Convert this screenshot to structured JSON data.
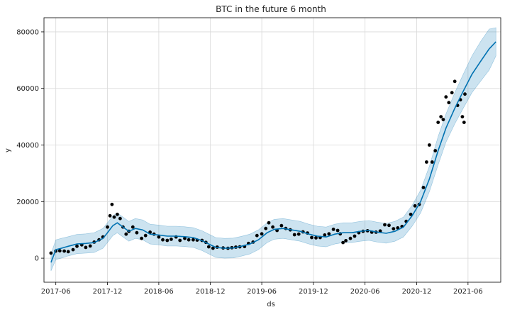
{
  "chart_data": {
    "type": "line",
    "title": "BTC in the future 6 month",
    "xlabel": "ds",
    "ylabel": "y",
    "xlim": [
      "2017-04-20",
      "2021-09-25"
    ],
    "ylim": [
      -8500,
      85000
    ],
    "x_ticks": [
      "2017-06",
      "2017-12",
      "2018-06",
      "2018-12",
      "2019-06",
      "2019-12",
      "2020-06",
      "2020-12",
      "2021-06"
    ],
    "y_ticks": [
      0,
      20000,
      40000,
      60000,
      80000
    ],
    "colors": {
      "forecast": "#0072B2",
      "band": "#0072B2",
      "actual": "#000000",
      "grid": "#d9d9d9"
    },
    "series": [
      {
        "name": "yhat",
        "x": [
          "2017-05-15",
          "2017-06-01",
          "2017-06-20",
          "2017-07-15",
          "2017-08-15",
          "2017-09-15",
          "2017-10-15",
          "2017-11-15",
          "2017-12-01",
          "2017-12-20",
          "2018-01-05",
          "2018-01-25",
          "2018-02-15",
          "2018-03-10",
          "2018-04-05",
          "2018-05-01",
          "2018-06-01",
          "2018-07-01",
          "2018-08-01",
          "2018-09-01",
          "2018-10-01",
          "2018-11-01",
          "2018-11-25",
          "2018-12-20",
          "2019-01-20",
          "2019-02-20",
          "2019-03-20",
          "2019-04-20",
          "2019-05-20",
          "2019-06-20",
          "2019-07-15",
          "2019-08-15",
          "2019-09-15",
          "2019-10-15",
          "2019-11-15",
          "2019-12-15",
          "2020-01-15",
          "2020-02-15",
          "2020-03-15",
          "2020-04-15",
          "2020-05-15",
          "2020-06-15",
          "2020-07-15",
          "2020-08-15",
          "2020-09-15",
          "2020-10-15",
          "2020-11-15",
          "2020-12-15",
          "2021-01-15",
          "2021-02-15",
          "2021-03-15",
          "2021-04-15",
          "2021-05-15",
          "2021-06-15",
          "2021-07-15",
          "2021-08-15",
          "2021-09-08"
        ],
        "values": [
          -1500,
          3000,
          3500,
          4200,
          5000,
          5200,
          5500,
          7000,
          9000,
          11500,
          12500,
          11000,
          9500,
          10500,
          10000,
          8500,
          8200,
          7800,
          7800,
          7600,
          7300,
          6200,
          5000,
          3800,
          3500,
          3600,
          4200,
          5000,
          6500,
          9000,
          10200,
          10500,
          10000,
          9500,
          8500,
          7800,
          7500,
          8500,
          9000,
          9000,
          9500,
          9800,
          9200,
          8800,
          9500,
          11000,
          15000,
          20000,
          28000,
          38000,
          46000,
          53000,
          59000,
          65000,
          69500,
          74000,
          76500
        ]
      }
    ],
    "forecast_band": {
      "x": [
        "2017-05-15",
        "2017-06-01",
        "2017-06-20",
        "2017-07-15",
        "2017-08-15",
        "2017-09-15",
        "2017-10-15",
        "2017-11-15",
        "2017-12-01",
        "2017-12-20",
        "2018-01-05",
        "2018-01-25",
        "2018-02-15",
        "2018-03-10",
        "2018-04-05",
        "2018-05-01",
        "2018-06-01",
        "2018-07-01",
        "2018-08-01",
        "2018-09-01",
        "2018-10-01",
        "2018-11-01",
        "2018-11-25",
        "2018-12-20",
        "2019-01-20",
        "2019-02-20",
        "2019-03-20",
        "2019-04-20",
        "2019-05-20",
        "2019-06-20",
        "2019-07-15",
        "2019-08-15",
        "2019-09-15",
        "2019-10-15",
        "2019-11-15",
        "2019-12-15",
        "2020-01-15",
        "2020-02-15",
        "2020-03-15",
        "2020-04-15",
        "2020-05-15",
        "2020-06-15",
        "2020-07-15",
        "2020-08-15",
        "2020-09-15",
        "2020-10-15",
        "2020-11-15",
        "2020-12-15",
        "2021-01-15",
        "2021-02-15",
        "2021-03-15",
        "2021-04-15",
        "2021-05-15",
        "2021-06-15",
        "2021-07-15",
        "2021-08-15",
        "2021-09-08"
      ],
      "lower": [
        -4500,
        -500,
        0,
        800,
        1600,
        1800,
        2000,
        3500,
        5500,
        8000,
        9000,
        7500,
        6000,
        7000,
        6500,
        5000,
        4700,
        4300,
        4300,
        4100,
        3800,
        2700,
        1500,
        300,
        0,
        100,
        700,
        1500,
        3000,
        5500,
        6700,
        7000,
        6500,
        6000,
        5000,
        4300,
        4000,
        5000,
        5500,
        5500,
        6000,
        6300,
        5700,
        5300,
        6000,
        7500,
        11300,
        16000,
        23500,
        33000,
        41000,
        47500,
        53000,
        58500,
        62500,
        66500,
        71500
      ],
      "upper": [
        1500,
        6500,
        7000,
        7600,
        8400,
        8600,
        9000,
        10500,
        12500,
        15000,
        16000,
        14500,
        13000,
        14000,
        13500,
        12000,
        11700,
        11300,
        11300,
        11100,
        10800,
        9700,
        8500,
        7300,
        7000,
        7100,
        7700,
        8500,
        10000,
        12500,
        13700,
        14000,
        13500,
        13000,
        12000,
        11300,
        11000,
        12000,
        12500,
        12500,
        13000,
        13300,
        12700,
        12300,
        13000,
        14500,
        18700,
        24000,
        32500,
        43000,
        51000,
        58500,
        65000,
        71500,
        76500,
        81000,
        81500
      ]
    },
    "actuals": {
      "name": "y",
      "x": [
        "2017-05-15",
        "2017-06-01",
        "2017-06-15",
        "2017-07-01",
        "2017-07-15",
        "2017-08-01",
        "2017-08-15",
        "2017-09-01",
        "2017-09-15",
        "2017-10-01",
        "2017-10-15",
        "2017-11-01",
        "2017-11-15",
        "2017-12-01",
        "2017-12-10",
        "2017-12-17",
        "2017-12-25",
        "2018-01-05",
        "2018-01-15",
        "2018-01-25",
        "2018-02-05",
        "2018-02-15",
        "2018-03-01",
        "2018-03-15",
        "2018-04-01",
        "2018-04-15",
        "2018-05-01",
        "2018-05-15",
        "2018-06-01",
        "2018-06-15",
        "2018-07-01",
        "2018-07-15",
        "2018-08-01",
        "2018-08-15",
        "2018-09-01",
        "2018-09-15",
        "2018-10-01",
        "2018-10-15",
        "2018-11-01",
        "2018-11-15",
        "2018-11-25",
        "2018-12-10",
        "2018-12-25",
        "2019-01-15",
        "2019-02-01",
        "2019-02-15",
        "2019-03-01",
        "2019-03-15",
        "2019-04-01",
        "2019-04-15",
        "2019-05-01",
        "2019-05-15",
        "2019-06-01",
        "2019-06-15",
        "2019-06-26",
        "2019-07-10",
        "2019-07-25",
        "2019-08-10",
        "2019-08-25",
        "2019-09-10",
        "2019-09-25",
        "2019-10-10",
        "2019-10-25",
        "2019-11-10",
        "2019-11-25",
        "2019-12-10",
        "2019-12-25",
        "2020-01-10",
        "2020-01-25",
        "2020-02-10",
        "2020-02-25",
        "2020-03-05",
        "2020-03-15",
        "2020-03-25",
        "2020-04-10",
        "2020-04-25",
        "2020-05-10",
        "2020-05-25",
        "2020-06-10",
        "2020-06-25",
        "2020-07-10",
        "2020-07-25",
        "2020-08-10",
        "2020-08-25",
        "2020-09-10",
        "2020-09-25",
        "2020-10-10",
        "2020-10-25",
        "2020-11-10",
        "2020-11-25",
        "2020-12-10",
        "2020-12-25",
        "2021-01-05",
        "2021-01-15",
        "2021-01-25",
        "2021-02-05",
        "2021-02-15",
        "2021-02-25",
        "2021-03-05",
        "2021-03-15",
        "2021-03-25",
        "2021-04-05",
        "2021-04-15",
        "2021-04-25",
        "2021-05-05",
        "2021-05-12",
        "2021-05-18",
        "2021-05-21"
      ],
      "values": [
        1800,
        2500,
        2600,
        2500,
        2300,
        3000,
        4200,
        4700,
        3800,
        4300,
        5700,
        6500,
        7500,
        11000,
        15000,
        19000,
        14500,
        15500,
        14000,
        11000,
        8500,
        9500,
        11000,
        9000,
        7000,
        8000,
        9200,
        8500,
        7500,
        6500,
        6300,
        6700,
        7500,
        6300,
        7000,
        6500,
        6500,
        6400,
        6300,
        5600,
        4000,
        3500,
        3900,
        3600,
        3500,
        3700,
        3900,
        4000,
        4100,
        5200,
        5700,
        8000,
        8600,
        10500,
        12500,
        11000,
        9800,
        11500,
        10500,
        10000,
        8300,
        8500,
        9300,
        8900,
        7300,
        7200,
        7300,
        8200,
        8600,
        10200,
        9800,
        8600,
        5500,
        6200,
        7000,
        7800,
        9000,
        9500,
        9700,
        9200,
        9200,
        9600,
        11800,
        11600,
        10400,
        10700,
        11200,
        13000,
        15500,
        18500,
        19000,
        25000,
        34000,
        40000,
        34000,
        38000,
        48000,
        50000,
        49000,
        57000,
        55000,
        58500,
        62500,
        54000,
        56000,
        50000,
        48000,
        58000
      ]
    }
  }
}
